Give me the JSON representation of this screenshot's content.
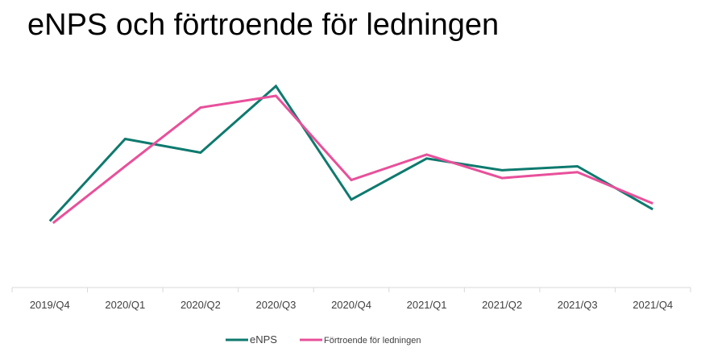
{
  "chart_data": {
    "type": "line",
    "title": "eNPS och förtroende för ledningen",
    "xlabel": "",
    "ylabel": "",
    "categories": [
      "2019/Q4",
      "2020/Q1",
      "2020/Q2",
      "2020/Q3",
      "2020/Q4",
      "2021/Q1",
      "2021/Q2",
      "2021/Q3",
      "2021/Q4"
    ],
    "ylim": [
      0,
      100
    ],
    "grid": false,
    "legend_position": "bottom-center",
    "series": [
      {
        "name": "eNPS",
        "color": "#0e7a6e",
        "values": [
          29,
          71,
          64,
          98,
          40,
          61,
          55,
          57,
          35
        ]
      },
      {
        "name": "Förtroende för ledningen",
        "color": "#e8509a",
        "values": [
          28,
          57,
          87,
          93,
          50,
          63,
          51,
          54,
          38
        ]
      }
    ]
  }
}
